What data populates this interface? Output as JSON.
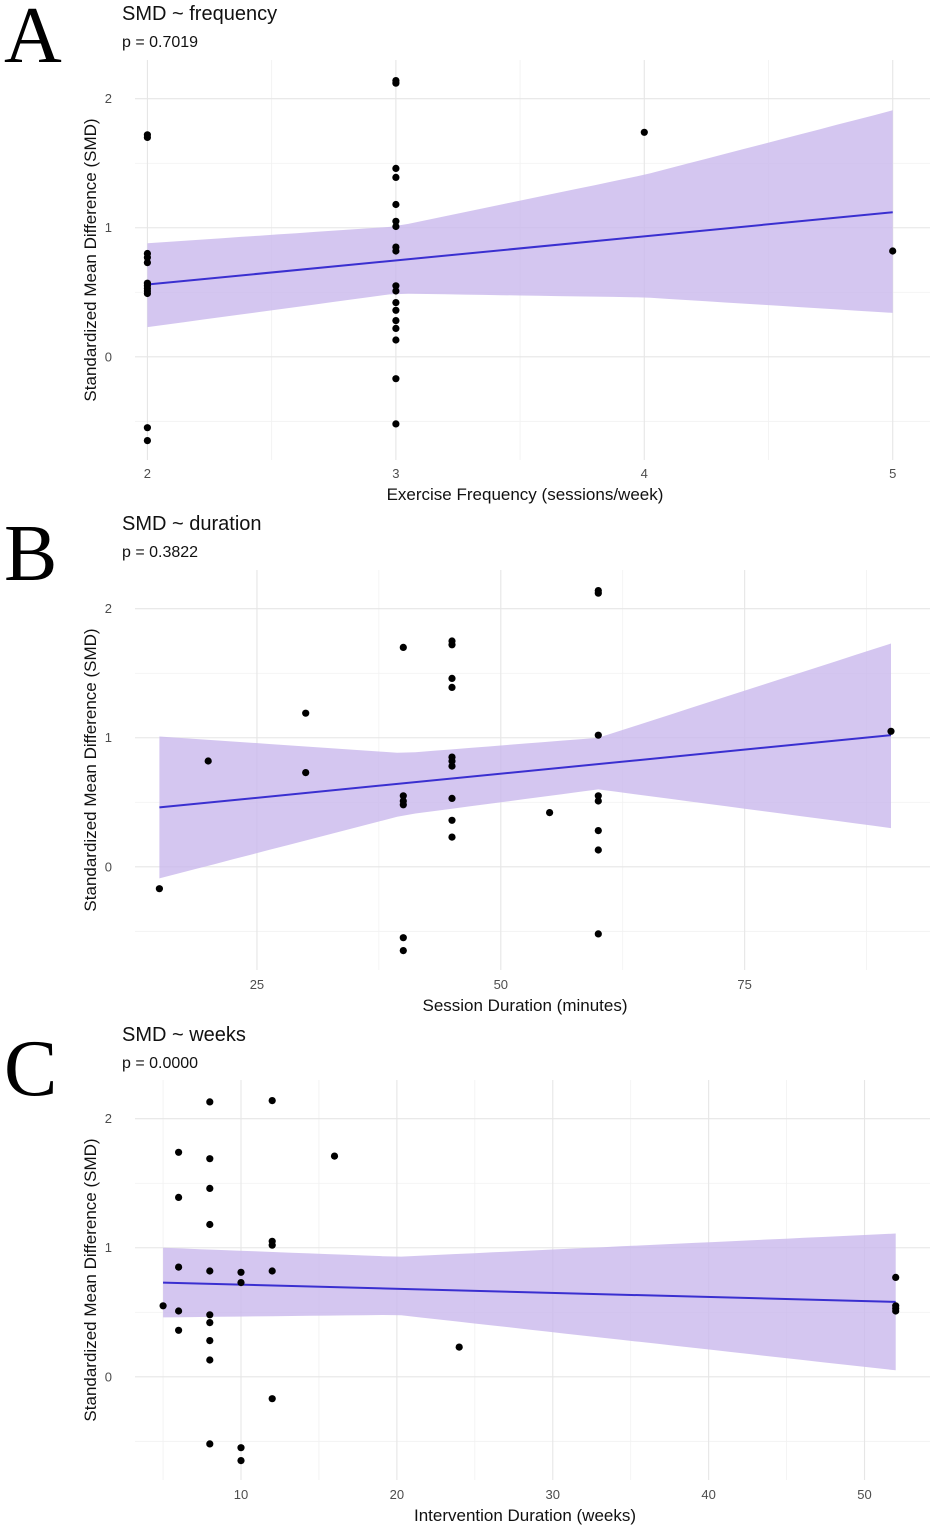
{
  "figure": {
    "colors": {
      "ribbon": "#c9b8ec",
      "line": "#3a2fd0",
      "points": "#000000",
      "grid": "#e6e6e6"
    }
  },
  "chart_data": [
    {
      "type": "scatter",
      "panel": "A",
      "title": "SMD ~ frequency",
      "subtitle": "p = 0.7019",
      "xlabel": "Exercise Frequency (sessions/week)",
      "ylabel": "Standardized Mean Difference (SMD)",
      "xlim": [
        1.95,
        5.15
      ],
      "ylim": [
        -0.8,
        2.3
      ],
      "xticks": [
        2,
        3,
        4,
        5
      ],
      "xtick_labels": [
        "2",
        "3",
        "4",
        "5"
      ],
      "yticks": [
        0,
        1,
        2
      ],
      "ytick_labels": [
        "0",
        "1",
        "2"
      ],
      "points": [
        [
          2,
          1.7
        ],
        [
          2,
          1.72
        ],
        [
          2,
          0.8
        ],
        [
          2,
          0.77
        ],
        [
          2,
          0.73
        ],
        [
          2,
          0.57
        ],
        [
          2,
          0.55
        ],
        [
          2,
          0.53
        ],
        [
          2,
          0.51
        ],
        [
          2,
          0.49
        ],
        [
          2,
          -0.55
        ],
        [
          2,
          -0.65
        ],
        [
          3,
          2.14
        ],
        [
          3,
          2.12
        ],
        [
          3,
          1.46
        ],
        [
          3,
          1.39
        ],
        [
          3,
          1.18
        ],
        [
          3,
          1.05
        ],
        [
          3,
          1.01
        ],
        [
          3,
          0.85
        ],
        [
          3,
          0.82
        ],
        [
          3,
          0.55
        ],
        [
          3,
          0.51
        ],
        [
          3,
          0.42
        ],
        [
          3,
          0.36
        ],
        [
          3,
          0.28
        ],
        [
          3,
          0.22
        ],
        [
          3,
          0.13
        ],
        [
          3,
          -0.17
        ],
        [
          3,
          -0.52
        ],
        [
          4,
          1.74
        ],
        [
          5,
          0.82
        ]
      ],
      "fit": {
        "x": [
          2,
          5
        ],
        "y": [
          0.56,
          1.12
        ]
      },
      "ci": {
        "x": [
          2,
          3,
          4,
          5
        ],
        "lower": [
          0.23,
          0.49,
          0.46,
          0.34
        ],
        "upper": [
          0.88,
          1.01,
          1.41,
          1.91
        ]
      }
    },
    {
      "type": "scatter",
      "panel": "B",
      "title": "SMD ~ duration",
      "subtitle": "p = 0.3822",
      "xlabel": "Session Duration (minutes)",
      "ylabel": "Standardized Mean Difference (SMD)",
      "xlim": [
        12.5,
        94
      ],
      "ylim": [
        -0.8,
        2.3
      ],
      "xticks": [
        25,
        50,
        75
      ],
      "xtick_labels": [
        "25",
        "50",
        "75"
      ],
      "yticks": [
        0,
        1,
        2
      ],
      "ytick_labels": [
        "0",
        "1",
        "2"
      ],
      "points": [
        [
          15,
          -0.17
        ],
        [
          20,
          0.82
        ],
        [
          30,
          1.19
        ],
        [
          30,
          0.73
        ],
        [
          40,
          1.7
        ],
        [
          40,
          0.55
        ],
        [
          40,
          0.51
        ],
        [
          40,
          0.48
        ],
        [
          40,
          -0.55
        ],
        [
          40,
          -0.65
        ],
        [
          45,
          1.75
        ],
        [
          45,
          1.72
        ],
        [
          45,
          1.46
        ],
        [
          45,
          1.39
        ],
        [
          45,
          0.85
        ],
        [
          45,
          0.82
        ],
        [
          45,
          0.78
        ],
        [
          45,
          0.53
        ],
        [
          45,
          0.36
        ],
        [
          45,
          0.23
        ],
        [
          55,
          0.42
        ],
        [
          60,
          2.14
        ],
        [
          60,
          2.12
        ],
        [
          60,
          1.02
        ],
        [
          60,
          0.55
        ],
        [
          60,
          0.51
        ],
        [
          60,
          0.28
        ],
        [
          60,
          0.13
        ],
        [
          60,
          -0.52
        ],
        [
          90,
          1.05
        ]
      ],
      "fit": {
        "x": [
          15,
          90
        ],
        "y": [
          0.46,
          1.02
        ]
      },
      "ci": {
        "x": [
          15,
          40,
          60,
          90
        ],
        "lower": [
          -0.09,
          0.4,
          0.6,
          0.3
        ],
        "upper": [
          1.01,
          0.88,
          1.0,
          1.73
        ]
      }
    },
    {
      "type": "scatter",
      "panel": "C",
      "title": "SMD ~ weeks",
      "subtitle": "p = 0.0000",
      "xlabel": "Intervention Duration (weeks)",
      "ylabel": "Standardized Mean Difference (SMD)",
      "xlim": [
        3.2,
        54.2
      ],
      "ylim": [
        -0.8,
        2.3
      ],
      "xticks": [
        10,
        20,
        30,
        40,
        50
      ],
      "xtick_labels": [
        "10",
        "20",
        "30",
        "40",
        "50"
      ],
      "yticks": [
        0,
        1,
        2
      ],
      "ytick_labels": [
        "0",
        "1",
        "2"
      ],
      "points": [
        [
          5,
          0.55
        ],
        [
          6,
          1.74
        ],
        [
          6,
          1.39
        ],
        [
          6,
          0.85
        ],
        [
          6,
          0.51
        ],
        [
          6,
          0.36
        ],
        [
          8,
          2.13
        ],
        [
          8,
          1.69
        ],
        [
          8,
          1.46
        ],
        [
          8,
          1.18
        ],
        [
          8,
          0.82
        ],
        [
          8,
          0.48
        ],
        [
          8,
          0.42
        ],
        [
          8,
          0.28
        ],
        [
          8,
          0.13
        ],
        [
          8,
          -0.52
        ],
        [
          10,
          0.81
        ],
        [
          10,
          0.73
        ],
        [
          10,
          -0.55
        ],
        [
          10,
          -0.65
        ],
        [
          12,
          2.14
        ],
        [
          12,
          1.05
        ],
        [
          12,
          1.02
        ],
        [
          12,
          0.82
        ],
        [
          12,
          -0.17
        ],
        [
          16,
          1.71
        ],
        [
          24,
          0.23
        ],
        [
          52,
          0.77
        ],
        [
          52,
          0.55
        ],
        [
          52,
          0.53
        ],
        [
          52,
          0.51
        ]
      ],
      "fit": {
        "x": [
          5,
          52
        ],
        "y": [
          0.73,
          0.58
        ]
      },
      "ci": {
        "x": [
          5,
          20,
          52
        ],
        "lower": [
          0.46,
          0.48,
          0.05
        ],
        "upper": [
          1.0,
          0.93,
          1.11
        ]
      }
    }
  ]
}
